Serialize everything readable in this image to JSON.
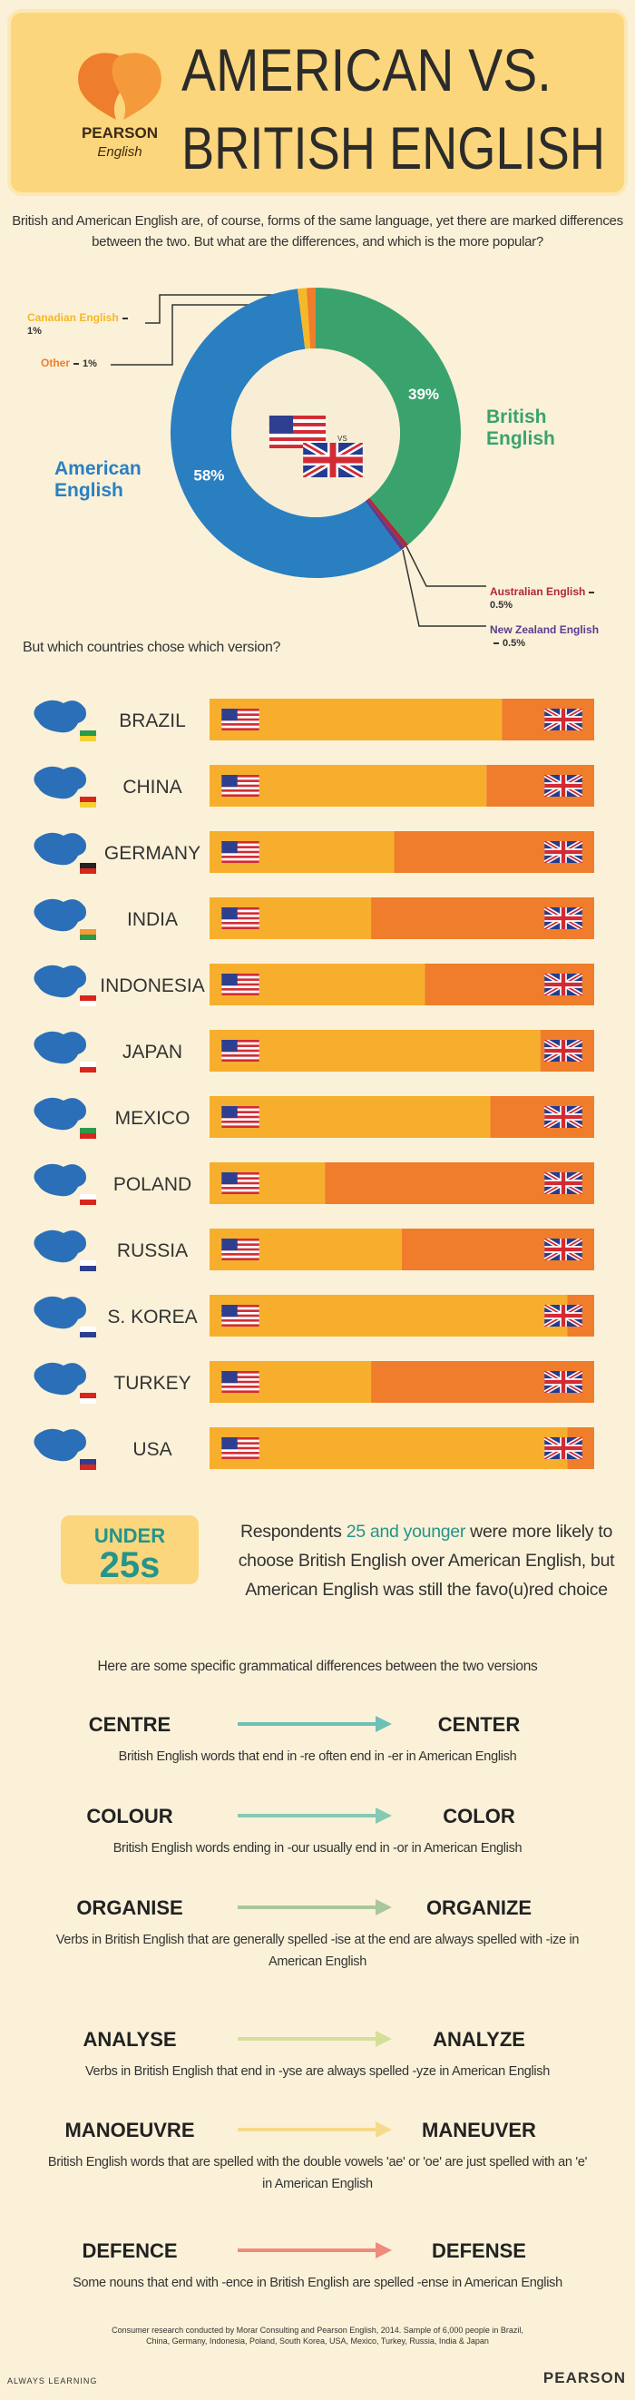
{
  "header": {
    "logo_brand": "PEARSON",
    "logo_sub": "English",
    "title_line1": "AMERICAN VS.",
    "title_line2": "BRITISH ENGLISH"
  },
  "intro": "British and American English are, of course, forms of the same language, yet there are marked differences between the two. But what are the differences, and which is the more popular?",
  "chart_data": [
    {
      "type": "pie",
      "categories": [
        "British English",
        "Australian English",
        "New Zealand English",
        "American English",
        "Canadian English",
        "Other"
      ],
      "values": [
        39,
        0.5,
        0.5,
        58,
        1,
        1
      ],
      "value_labels": [
        "39%",
        "0.5%",
        "0.5%",
        "58%",
        "1%",
        "1%"
      ],
      "colors": [
        "#3aa36d",
        "#b0283b",
        "#5b3d8e",
        "#2a7fc1",
        "#f5b829",
        "#ef7d2b"
      ],
      "center_label": "VS"
    },
    {
      "type": "bar",
      "orientation": "horizontal",
      "stacked": true,
      "title": "But which countries chose which version?",
      "categories": [
        "BRAZIL",
        "CHINA",
        "GERMANY",
        "INDIA",
        "INDONESIA",
        "JAPAN",
        "MEXICO",
        "POLAND",
        "RUSSIA",
        "S. KOREA",
        "TURKEY",
        "USA"
      ],
      "series": [
        {
          "color": "#f7ae2d",
          "values": [
            76,
            72,
            48,
            42,
            56,
            86,
            73,
            30,
            50,
            93,
            42,
            93
          ]
        },
        {
          "color": "#ef7d2b",
          "values": [
            24,
            28,
            52,
            58,
            44,
            14,
            27,
            70,
            50,
            7,
            58,
            7
          ]
        }
      ],
      "xlim": [
        0,
        100
      ]
    }
  ],
  "under25": {
    "badge_top": "UNDER",
    "badge_bottom": "25s",
    "text_before": "Respondents ",
    "text_highlight": "25 and younger",
    "text_after": " were more likely to choose British English over American English, but American English was still the favo(u)red choice"
  },
  "differences": {
    "heading": "Here are some specific grammatical differences between the two versions",
    "items": [
      {
        "british": "CENTRE",
        "american": "CENTER",
        "description": "British English words that end in -re often end in -er in American English"
      },
      {
        "british": "COLOUR",
        "american": "COLOR",
        "description": "British English words ending in -our usually end in -or in American English"
      },
      {
        "british": "ORGANISE",
        "american": "ORGANIZE",
        "description": "Verbs in British English that are generally spelled -ise at the end are always spelled with -ize in American English"
      },
      {
        "british": "ANALYSE",
        "american": "ANALYZE",
        "description": "Verbs in British English that end in -yse are always spelled -yze in American English"
      },
      {
        "british": "MANOEUVRE",
        "american": "MANEUVER",
        "description": "British English words that are spelled with the double vowels 'ae' or 'oe' are just spelled with an 'e' in American English"
      },
      {
        "british": "DEFENCE",
        "american": "DEFENSE",
        "description": "Some nouns that end with -ence in British English are spelled -ense in American English"
      }
    ]
  },
  "footer": {
    "note": "Consumer research conducted by Morar Consulting and Pearson English, 2014. Sample of 6,000 people in Brazil, China, Germany, Indonesia, Poland, South Korea, USA, Mexico, Turkey, Russia, India & Japan",
    "tagline": "ALWAYS LEARNING",
    "brand": "PEARSON"
  }
}
